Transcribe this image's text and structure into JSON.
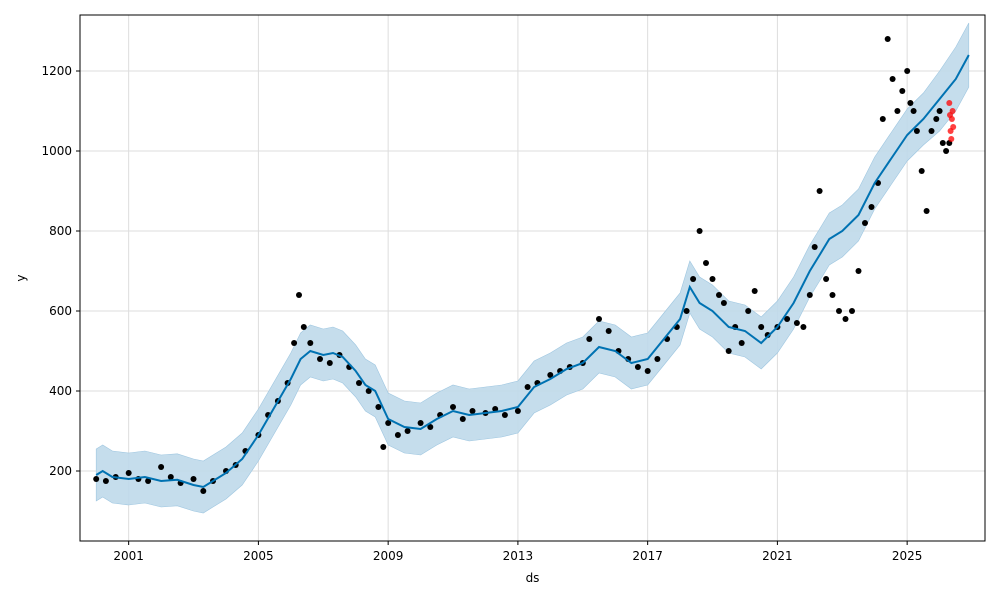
{
  "chart_data": {
    "type": "line",
    "title": "",
    "xlabel": "ds",
    "ylabel": "y",
    "xlim": [
      1999.5,
      2027.4
    ],
    "ylim": [
      25,
      1340
    ],
    "grid": true,
    "x_ticks": [
      {
        "value": 2001,
        "label": "2001"
      },
      {
        "value": 2005,
        "label": "2005"
      },
      {
        "value": 2009,
        "label": "2009"
      },
      {
        "value": 2013,
        "label": "2013"
      },
      {
        "value": 2017,
        "label": "2017"
      },
      {
        "value": 2021,
        "label": "2021"
      },
      {
        "value": 2025,
        "label": "2025"
      }
    ],
    "y_ticks": [
      {
        "value": 200,
        "label": "200"
      },
      {
        "value": 400,
        "label": "400"
      },
      {
        "value": 600,
        "label": "600"
      },
      {
        "value": 800,
        "label": "800"
      },
      {
        "value": 1000,
        "label": "1000"
      },
      {
        "value": 1200,
        "label": "1200"
      }
    ],
    "colors": {
      "forecast": "#0072B2",
      "interval": "#BFD9EA",
      "observed": "#000000",
      "holdout": "#FF0000",
      "grid": "#DDDDDD"
    },
    "series": [
      {
        "kind": "forecast_line",
        "x": [
          2000.0,
          2000.2,
          2000.5,
          2001.0,
          2001.5,
          2002.0,
          2002.5,
          2003.0,
          2003.3,
          2003.6,
          2004.0,
          2004.5,
          2005.0,
          2005.5,
          2006.0,
          2006.3,
          2006.6,
          2007.0,
          2007.3,
          2007.6,
          2008.0,
          2008.3,
          2008.6,
          2009.0,
          2009.5,
          2010.0,
          2010.5,
          2011.0,
          2011.5,
          2012.0,
          2012.5,
          2013.0,
          2013.5,
          2014.0,
          2014.5,
          2015.0,
          2015.5,
          2016.0,
          2016.5,
          2017.0,
          2017.5,
          2018.0,
          2018.3,
          2018.6,
          2019.0,
          2019.5,
          2020.0,
          2020.5,
          2021.0,
          2021.5,
          2022.0,
          2022.3,
          2022.6,
          2023.0,
          2023.5,
          2024.0,
          2024.5,
          2025.0,
          2025.5,
          2026.0,
          2026.5,
          2026.9
        ],
        "y": [
          190,
          200,
          185,
          180,
          185,
          175,
          178,
          165,
          160,
          175,
          195,
          230,
          290,
          360,
          430,
          480,
          500,
          490,
          495,
          485,
          450,
          415,
          400,
          330,
          310,
          305,
          330,
          350,
          340,
          345,
          350,
          360,
          410,
          430,
          455,
          470,
          510,
          500,
          470,
          480,
          530,
          580,
          660,
          620,
          600,
          560,
          550,
          520,
          560,
          620,
          700,
          740,
          780,
          800,
          840,
          920,
          980,
          1040,
          1080,
          1130,
          1180,
          1240
        ]
      },
      {
        "kind": "uncertainty_band",
        "x": [
          2000.0,
          2000.2,
          2000.5,
          2001.0,
          2001.5,
          2002.0,
          2002.5,
          2003.0,
          2003.3,
          2003.6,
          2004.0,
          2004.5,
          2005.0,
          2005.5,
          2006.0,
          2006.3,
          2006.6,
          2007.0,
          2007.3,
          2007.6,
          2008.0,
          2008.3,
          2008.6,
          2009.0,
          2009.5,
          2010.0,
          2010.5,
          2011.0,
          2011.5,
          2012.0,
          2012.5,
          2013.0,
          2013.5,
          2014.0,
          2014.5,
          2015.0,
          2015.5,
          2016.0,
          2016.5,
          2017.0,
          2017.5,
          2018.0,
          2018.3,
          2018.6,
          2019.0,
          2019.5,
          2020.0,
          2020.5,
          2021.0,
          2021.5,
          2022.0,
          2022.3,
          2022.6,
          2023.0,
          2023.5,
          2024.0,
          2024.5,
          2025.0,
          2025.5,
          2026.0,
          2026.5,
          2026.9
        ],
        "lower": [
          125,
          135,
          120,
          115,
          120,
          110,
          113,
          100,
          95,
          110,
          130,
          165,
          225,
          295,
          365,
          415,
          435,
          425,
          430,
          420,
          385,
          350,
          335,
          265,
          245,
          240,
          265,
          285,
          275,
          280,
          285,
          295,
          345,
          365,
          390,
          405,
          445,
          435,
          405,
          415,
          465,
          515,
          595,
          555,
          535,
          495,
          485,
          455,
          495,
          555,
          635,
          675,
          715,
          735,
          775,
          855,
          915,
          975,
          1015,
          1050,
          1100,
          1160
        ],
        "upper": [
          255,
          265,
          250,
          245,
          250,
          240,
          243,
          230,
          225,
          240,
          260,
          295,
          355,
          425,
          495,
          545,
          565,
          555,
          560,
          550,
          515,
          480,
          465,
          395,
          375,
          370,
          395,
          415,
          405,
          410,
          415,
          425,
          475,
          495,
          520,
          535,
          575,
          565,
          535,
          545,
          595,
          645,
          725,
          685,
          665,
          625,
          615,
          585,
          625,
          685,
          765,
          805,
          845,
          865,
          905,
          985,
          1045,
          1105,
          1145,
          1200,
          1260,
          1320
        ]
      },
      {
        "kind": "observed_points",
        "x": [
          2000.0,
          2000.3,
          2000.6,
          2001.0,
          2001.3,
          2001.6,
          2002.0,
          2002.3,
          2002.6,
          2003.0,
          2003.3,
          2003.6,
          2004.0,
          2004.3,
          2004.6,
          2005.0,
          2005.3,
          2005.6,
          2005.9,
          2006.1,
          2006.25,
          2006.4,
          2006.6,
          2006.9,
          2007.2,
          2007.5,
          2007.8,
          2008.1,
          2008.4,
          2008.7,
          2008.85,
          2009.0,
          2009.3,
          2009.6,
          2010.0,
          2010.3,
          2010.6,
          2011.0,
          2011.3,
          2011.6,
          2012.0,
          2012.3,
          2012.6,
          2013.0,
          2013.3,
          2013.6,
          2014.0,
          2014.3,
          2014.6,
          2015.0,
          2015.2,
          2015.5,
          2015.8,
          2016.1,
          2016.4,
          2016.7,
          2017.0,
          2017.3,
          2017.6,
          2017.9,
          2018.2,
          2018.4,
          2018.6,
          2018.8,
          2019.0,
          2019.2,
          2019.35,
          2019.5,
          2019.7,
          2019.9,
          2020.1,
          2020.3,
          2020.5,
          2020.7,
          2021.0,
          2021.3,
          2021.6,
          2021.8,
          2022.0,
          2022.15,
          2022.3,
          2022.5,
          2022.7,
          2022.9,
          2023.1,
          2023.3,
          2023.5,
          2023.7,
          2023.9,
          2024.1,
          2024.25,
          2024.4,
          2024.55,
          2024.7,
          2024.85,
          2025.0,
          2025.1,
          2025.2,
          2025.3,
          2025.45,
          2025.6,
          2025.75,
          2025.9,
          2026.0,
          2026.1,
          2026.2,
          2026.3
        ],
        "y": [
          180,
          175,
          185,
          195,
          180,
          175,
          210,
          185,
          170,
          180,
          150,
          175,
          200,
          215,
          250,
          290,
          340,
          375,
          420,
          520,
          640,
          560,
          520,
          480,
          470,
          490,
          460,
          420,
          400,
          360,
          260,
          320,
          290,
          300,
          320,
          310,
          340,
          360,
          330,
          350,
          345,
          355,
          340,
          350,
          410,
          420,
          440,
          450,
          460,
          470,
          530,
          580,
          550,
          500,
          480,
          460,
          450,
          480,
          530,
          560,
          600,
          680,
          800,
          720,
          680,
          640,
          620,
          500,
          560,
          520,
          600,
          650,
          560,
          540,
          560,
          580,
          570,
          560,
          640,
          760,
          900,
          680,
          640,
          600,
          580,
          600,
          700,
          820,
          860,
          920,
          1080,
          1280,
          1180,
          1100,
          1150,
          1200,
          1120,
          1100,
          1050,
          950,
          850,
          1050,
          1080,
          1100,
          1020,
          1000,
          1020
        ]
      },
      {
        "kind": "holdout_points",
        "x": [
          2026.3,
          2026.32,
          2026.34,
          2026.36,
          2026.38,
          2026.4,
          2026.42
        ],
        "y": [
          1120,
          1090,
          1050,
          1030,
          1080,
          1100,
          1060
        ]
      }
    ]
  }
}
